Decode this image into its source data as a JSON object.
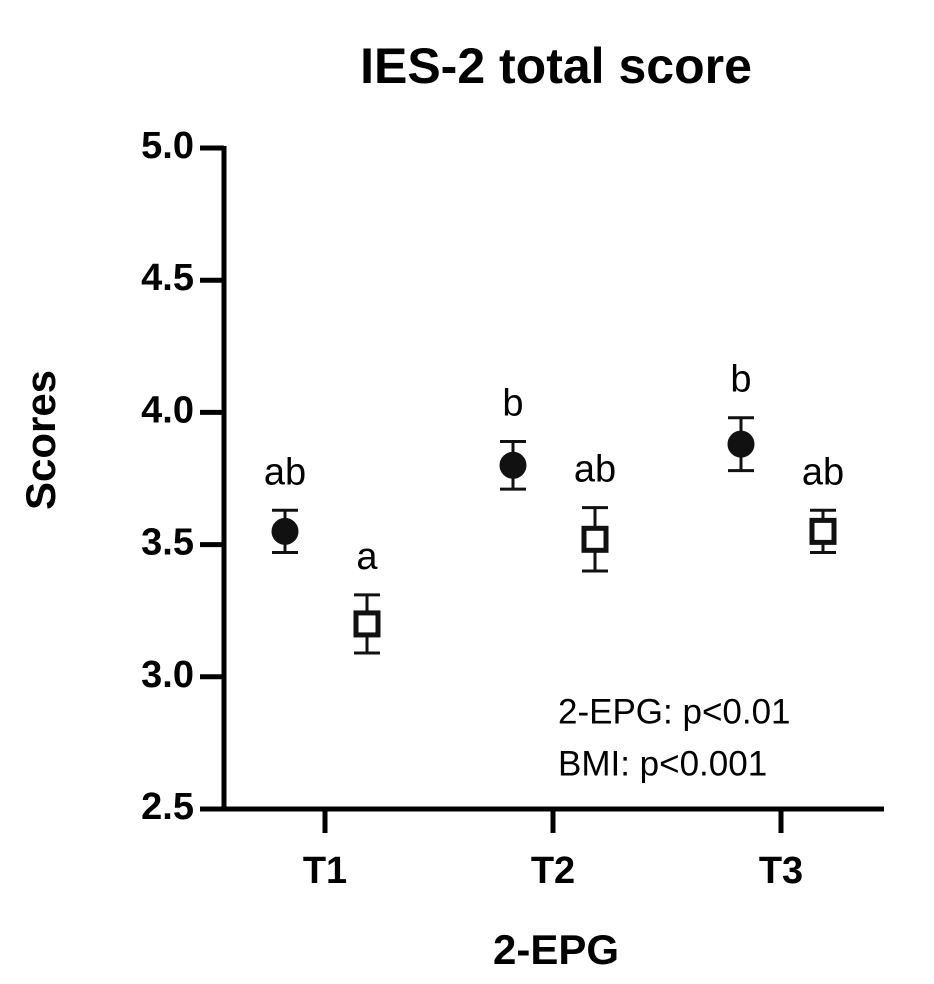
{
  "chart_data": {
    "type": "scatter",
    "title": "IES-2 total score",
    "x_label": "2-EPG",
    "y_label": "Scores",
    "categories": [
      "T1",
      "T2",
      "T3"
    ],
    "ylim": [
      2.5,
      5.0
    ],
    "yticks": [
      {
        "value": 2.5,
        "label": "2.5"
      },
      {
        "value": 3.0,
        "label": "3.0"
      },
      {
        "value": 3.5,
        "label": "3.5"
      },
      {
        "value": 4.0,
        "label": "4.0"
      },
      {
        "value": 4.5,
        "label": "4.5"
      },
      {
        "value": 5.0,
        "label": "5.0"
      }
    ],
    "series": [
      {
        "color": "#111111",
        "marker": "circle",
        "filled": true,
        "values": [
          3.55,
          3.8,
          3.88
        ],
        "errors": [
          0.08,
          0.09,
          0.1
        ],
        "point_labels": [
          "ab",
          "b",
          "b"
        ]
      },
      {
        "color": "#111111",
        "marker": "square",
        "filled": false,
        "values": [
          3.2,
          3.52,
          3.55
        ],
        "errors": [
          0.11,
          0.12,
          0.08
        ],
        "point_labels": [
          "a",
          "ab",
          "ab"
        ]
      }
    ],
    "annotations": [
      "2-EPG: p<0.01",
      "BMI: p<0.001"
    ]
  }
}
